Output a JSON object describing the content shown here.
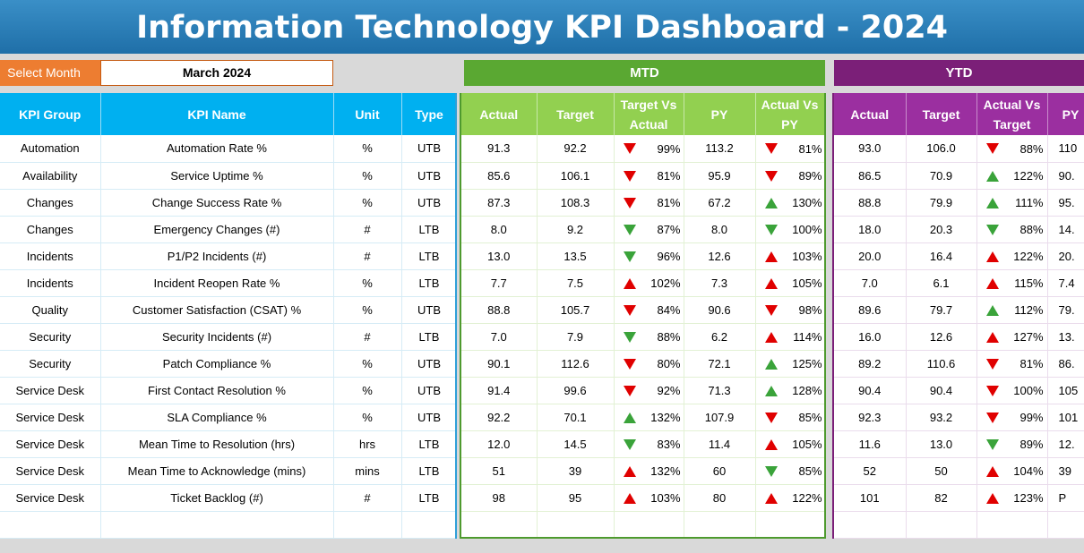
{
  "title": "Information Technology KPI Dashboard - 2024",
  "select_month": {
    "label": "Select Month",
    "value": "March 2024"
  },
  "sections": {
    "mtd": "MTD",
    "ytd": "YTD"
  },
  "left_headers": [
    "KPI Group",
    "KPI Name",
    "Unit",
    "Type"
  ],
  "mtd_headers": [
    "Actual",
    "Target",
    "Target Vs Actual",
    "PY",
    "Actual Vs PY"
  ],
  "ytd_headers": [
    "Actual",
    "Target",
    "Actual Vs Target",
    "PY"
  ],
  "colors": {
    "up_bad": "#e00000",
    "good": "#3aa33a",
    "mtd": "#92d050",
    "ytd": "#9b2fa0",
    "kpi": "#00b0f0"
  },
  "rows": [
    {
      "group": "Automation",
      "name": "Automation Rate %",
      "unit": "%",
      "type": "UTB",
      "mtd": {
        "actual": "91.3",
        "target": "92.2",
        "tva": "99%",
        "tva_dir": "down",
        "tva_color": "red",
        "py": "113.2",
        "avp": "81%",
        "avp_dir": "down",
        "avp_color": "red"
      },
      "ytd": {
        "actual": "93.0",
        "target": "106.0",
        "avt": "88%",
        "avt_dir": "down",
        "avt_color": "red",
        "py": "110"
      }
    },
    {
      "group": "Availability",
      "name": "Service Uptime %",
      "unit": "%",
      "type": "UTB",
      "mtd": {
        "actual": "85.6",
        "target": "106.1",
        "tva": "81%",
        "tva_dir": "down",
        "tva_color": "red",
        "py": "95.9",
        "avp": "89%",
        "avp_dir": "down",
        "avp_color": "red"
      },
      "ytd": {
        "actual": "86.5",
        "target": "70.9",
        "avt": "122%",
        "avt_dir": "up",
        "avt_color": "green",
        "py": "90."
      }
    },
    {
      "group": "Changes",
      "name": "Change Success Rate %",
      "unit": "%",
      "type": "UTB",
      "mtd": {
        "actual": "87.3",
        "target": "108.3",
        "tva": "81%",
        "tva_dir": "down",
        "tva_color": "red",
        "py": "67.2",
        "avp": "130%",
        "avp_dir": "up",
        "avp_color": "green"
      },
      "ytd": {
        "actual": "88.8",
        "target": "79.9",
        "avt": "111%",
        "avt_dir": "up",
        "avt_color": "green",
        "py": "95."
      }
    },
    {
      "group": "Changes",
      "name": "Emergency Changes (#)",
      "unit": "#",
      "type": "LTB",
      "mtd": {
        "actual": "8.0",
        "target": "9.2",
        "tva": "87%",
        "tva_dir": "down",
        "tva_color": "green",
        "py": "8.0",
        "avp": "100%",
        "avp_dir": "down",
        "avp_color": "green"
      },
      "ytd": {
        "actual": "18.0",
        "target": "20.3",
        "avt": "88%",
        "avt_dir": "down",
        "avt_color": "green",
        "py": "14."
      }
    },
    {
      "group": "Incidents",
      "name": "P1/P2 Incidents (#)",
      "unit": "#",
      "type": "LTB",
      "mtd": {
        "actual": "13.0",
        "target": "13.5",
        "tva": "96%",
        "tva_dir": "down",
        "tva_color": "green",
        "py": "12.6",
        "avp": "103%",
        "avp_dir": "up",
        "avp_color": "red"
      },
      "ytd": {
        "actual": "20.0",
        "target": "16.4",
        "avt": "122%",
        "avt_dir": "up",
        "avt_color": "red",
        "py": "20."
      }
    },
    {
      "group": "Incidents",
      "name": "Incident Reopen Rate %",
      "unit": "%",
      "type": "LTB",
      "mtd": {
        "actual": "7.7",
        "target": "7.5",
        "tva": "102%",
        "tva_dir": "up",
        "tva_color": "red",
        "py": "7.3",
        "avp": "105%",
        "avp_dir": "up",
        "avp_color": "red"
      },
      "ytd": {
        "actual": "7.0",
        "target": "6.1",
        "avt": "115%",
        "avt_dir": "up",
        "avt_color": "red",
        "py": "7.4"
      }
    },
    {
      "group": "Quality",
      "name": "Customer Satisfaction (CSAT) %",
      "unit": "%",
      "type": "UTB",
      "mtd": {
        "actual": "88.8",
        "target": "105.7",
        "tva": "84%",
        "tva_dir": "down",
        "tva_color": "red",
        "py": "90.6",
        "avp": "98%",
        "avp_dir": "down",
        "avp_color": "red"
      },
      "ytd": {
        "actual": "89.6",
        "target": "79.7",
        "avt": "112%",
        "avt_dir": "up",
        "avt_color": "green",
        "py": "79."
      }
    },
    {
      "group": "Security",
      "name": "Security Incidents (#)",
      "unit": "#",
      "type": "LTB",
      "mtd": {
        "actual": "7.0",
        "target": "7.9",
        "tva": "88%",
        "tva_dir": "down",
        "tva_color": "green",
        "py": "6.2",
        "avp": "114%",
        "avp_dir": "up",
        "avp_color": "red"
      },
      "ytd": {
        "actual": "16.0",
        "target": "12.6",
        "avt": "127%",
        "avt_dir": "up",
        "avt_color": "red",
        "py": "13."
      }
    },
    {
      "group": "Security",
      "name": "Patch Compliance %",
      "unit": "%",
      "type": "UTB",
      "mtd": {
        "actual": "90.1",
        "target": "112.6",
        "tva": "80%",
        "tva_dir": "down",
        "tva_color": "red",
        "py": "72.1",
        "avp": "125%",
        "avp_dir": "up",
        "avp_color": "green"
      },
      "ytd": {
        "actual": "89.2",
        "target": "110.6",
        "avt": "81%",
        "avt_dir": "down",
        "avt_color": "red",
        "py": "86."
      }
    },
    {
      "group": "Service Desk",
      "name": "First Contact Resolution %",
      "unit": "%",
      "type": "UTB",
      "mtd": {
        "actual": "91.4",
        "target": "99.6",
        "tva": "92%",
        "tva_dir": "down",
        "tva_color": "red",
        "py": "71.3",
        "avp": "128%",
        "avp_dir": "up",
        "avp_color": "green"
      },
      "ytd": {
        "actual": "90.4",
        "target": "90.4",
        "avt": "100%",
        "avt_dir": "down",
        "avt_color": "red",
        "py": "105"
      }
    },
    {
      "group": "Service Desk",
      "name": "SLA Compliance %",
      "unit": "%",
      "type": "UTB",
      "mtd": {
        "actual": "92.2",
        "target": "70.1",
        "tva": "132%",
        "tva_dir": "up",
        "tva_color": "green",
        "py": "107.9",
        "avp": "85%",
        "avp_dir": "down",
        "avp_color": "red"
      },
      "ytd": {
        "actual": "92.3",
        "target": "93.2",
        "avt": "99%",
        "avt_dir": "down",
        "avt_color": "red",
        "py": "101"
      }
    },
    {
      "group": "Service Desk",
      "name": "Mean Time to Resolution (hrs)",
      "unit": "hrs",
      "type": "LTB",
      "mtd": {
        "actual": "12.0",
        "target": "14.5",
        "tva": "83%",
        "tva_dir": "down",
        "tva_color": "green",
        "py": "11.4",
        "avp": "105%",
        "avp_dir": "up",
        "avp_color": "red"
      },
      "ytd": {
        "actual": "11.6",
        "target": "13.0",
        "avt": "89%",
        "avt_dir": "down",
        "avt_color": "green",
        "py": "12."
      }
    },
    {
      "group": "Service Desk",
      "name": "Mean Time to Acknowledge (mins)",
      "unit": "mins",
      "type": "LTB",
      "mtd": {
        "actual": "51",
        "target": "39",
        "tva": "132%",
        "tva_dir": "up",
        "tva_color": "red",
        "py": "60",
        "avp": "85%",
        "avp_dir": "down",
        "avp_color": "green"
      },
      "ytd": {
        "actual": "52",
        "target": "50",
        "avt": "104%",
        "avt_dir": "up",
        "avt_color": "red",
        "py": "39"
      }
    },
    {
      "group": "Service Desk",
      "name": "Ticket Backlog (#)",
      "unit": "#",
      "type": "LTB",
      "mtd": {
        "actual": "98",
        "target": "95",
        "tva": "103%",
        "tva_dir": "up",
        "tva_color": "red",
        "py": "80",
        "avp": "122%",
        "avp_dir": "up",
        "avp_color": "red"
      },
      "ytd": {
        "actual": "101",
        "target": "82",
        "avt": "123%",
        "avt_dir": "up",
        "avt_color": "red",
        "py": "P"
      }
    }
  ]
}
